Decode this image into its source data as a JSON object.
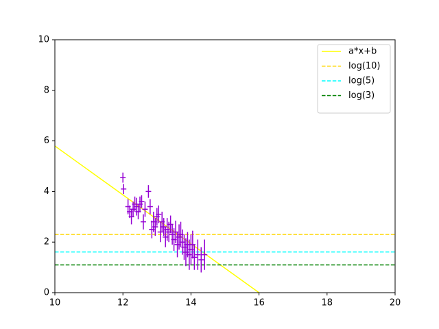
{
  "chart_data": {
    "type": "errorbar",
    "xlim": [
      10,
      20
    ],
    "xticks": [
      10,
      12,
      14,
      16,
      18,
      20
    ],
    "ylim": [
      0,
      10
    ],
    "yticks": [
      0,
      2,
      4,
      6,
      8,
      10
    ],
    "grid": false,
    "legend": "upper right",
    "series": [
      {
        "name": "a*x+b",
        "color": "#ffff00",
        "x": [
          10,
          16
        ],
        "values": [
          5.8,
          0
        ],
        "dashed": false
      },
      {
        "name": "log(10)",
        "color": "#ffd700",
        "y": 2.303,
        "dashed": true
      },
      {
        "name": "log(5)",
        "color": "#00ffff",
        "y": 1.609,
        "dashed": true
      },
      {
        "name": "log(3)",
        "color": "#008000",
        "y": 1.099,
        "dashed": true
      }
    ],
    "points": {
      "color": "#9400d3",
      "x": [
        12.0,
        12.02,
        12.15,
        12.2,
        12.25,
        12.3,
        12.35,
        12.4,
        12.45,
        12.5,
        12.55,
        12.6,
        12.65,
        12.75,
        12.8,
        12.85,
        12.9,
        12.95,
        13.0,
        13.05,
        13.1,
        13.15,
        13.2,
        13.25,
        13.3,
        13.35,
        13.4,
        13.45,
        13.5,
        13.55,
        13.6,
        13.65,
        13.7,
        13.75,
        13.8,
        13.85,
        13.9,
        13.95,
        14.0,
        14.05,
        14.1,
        14.2,
        14.3,
        14.4
      ],
      "values": [
        4.55,
        4.1,
        3.4,
        3.2,
        3.0,
        3.3,
        3.5,
        3.4,
        3.2,
        3.5,
        3.6,
        2.8,
        3.3,
        4.0,
        3.4,
        2.5,
        2.8,
        2.6,
        3.0,
        3.1,
        2.4,
        2.8,
        2.6,
        2.2,
        2.5,
        2.4,
        2.7,
        2.3,
        2.1,
        2.4,
        1.9,
        2.2,
        2.3,
        2.0,
        1.8,
        1.6,
        1.9,
        1.5,
        1.7,
        1.9,
        1.4,
        1.5,
        1.3,
        1.5
      ],
      "errors": [
        0.2,
        0.2,
        0.3,
        0.25,
        0.3,
        0.3,
        0.3,
        0.35,
        0.3,
        0.3,
        0.25,
        0.3,
        0.3,
        0.25,
        0.3,
        0.35,
        0.4,
        0.35,
        0.35,
        0.35,
        0.4,
        0.4,
        0.35,
        0.4,
        0.45,
        0.4,
        0.35,
        0.4,
        0.45,
        0.45,
        0.5,
        0.5,
        0.5,
        0.5,
        0.5,
        0.55,
        0.5,
        0.6,
        0.6,
        0.55,
        0.5,
        0.6,
        0.5,
        0.6
      ]
    }
  }
}
